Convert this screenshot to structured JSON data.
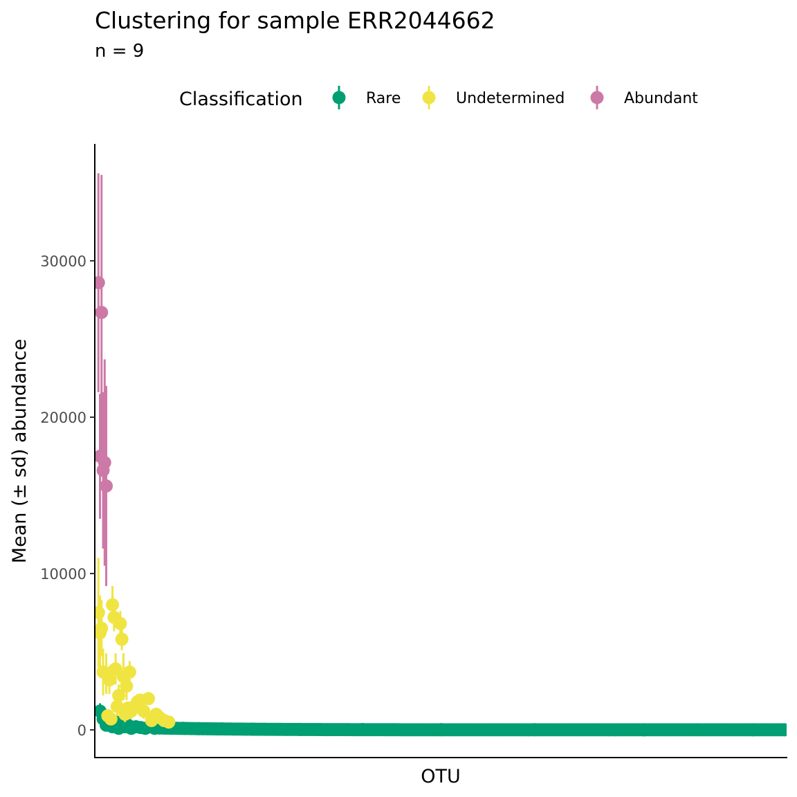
{
  "chart_data": {
    "type": "scatter",
    "title": "Clustering for sample ERR2044662",
    "subtitle": "n =  9",
    "xlabel": "OTU",
    "ylabel": "Mean (± sd) abundance",
    "ylim": [
      -1800,
      37500
    ],
    "yticks": [
      0,
      10000,
      20000,
      30000
    ],
    "ytick_labels": [
      "0",
      "10000",
      "20000",
      "30000"
    ],
    "x_ticks_shown": false,
    "grid": false,
    "legend": {
      "title": "Classification",
      "position": "top"
    },
    "series": [
      {
        "name": "Abundant",
        "color": "#CC79A7",
        "points": [
          {
            "x": 1,
            "y": 28600,
            "sd": 7000
          },
          {
            "x": 3,
            "y": 26700,
            "sd": 8800
          },
          {
            "x": 2,
            "y": 17500,
            "sd": 4000
          },
          {
            "x": 4,
            "y": 16600,
            "sd": 5000
          },
          {
            "x": 5,
            "y": 17100,
            "sd": 6600
          },
          {
            "x": 6,
            "y": 15600,
            "sd": 6400
          }
        ]
      },
      {
        "name": "Undetermined",
        "color": "#F0E442",
        "points": [
          {
            "x": 1,
            "y": 7500,
            "sd": 3500
          },
          {
            "x": 2,
            "y": 6200,
            "sd": 2400
          },
          {
            "x": 3,
            "y": 6500,
            "sd": 1800
          },
          {
            "x": 4,
            "y": 3700,
            "sd": 1500
          },
          {
            "x": 6,
            "y": 3600,
            "sd": 1300
          },
          {
            "x": 8,
            "y": 3200,
            "sd": 900
          },
          {
            "x": 10,
            "y": 8000,
            "sd": 1200
          },
          {
            "x": 11,
            "y": 7200,
            "sd": 900
          },
          {
            "x": 12,
            "y": 3900,
            "sd": 1000
          },
          {
            "x": 14,
            "y": 2200,
            "sd": 700
          },
          {
            "x": 15,
            "y": 6800,
            "sd": 800
          },
          {
            "x": 16,
            "y": 5800,
            "sd": 700
          },
          {
            "x": 17,
            "y": 3400,
            "sd": 1500
          },
          {
            "x": 19,
            "y": 2800,
            "sd": 900
          },
          {
            "x": 21,
            "y": 3700,
            "sd": 700
          },
          {
            "x": 13,
            "y": 1500,
            "sd": 600
          },
          {
            "x": 18,
            "y": 1000,
            "sd": 500
          },
          {
            "x": 20,
            "y": 1400,
            "sd": 400
          },
          {
            "x": 22,
            "y": 1200,
            "sd": 500
          },
          {
            "x": 24,
            "y": 1500,
            "sd": 400
          },
          {
            "x": 26,
            "y": 1800,
            "sd": 500
          },
          {
            "x": 28,
            "y": 1900,
            "sd": 400
          },
          {
            "x": 30,
            "y": 1200,
            "sd": 500
          },
          {
            "x": 33,
            "y": 2000,
            "sd": 400
          },
          {
            "x": 35,
            "y": 600,
            "sd": 300
          },
          {
            "x": 38,
            "y": 1000,
            "sd": 300
          },
          {
            "x": 40,
            "y": 800,
            "sd": 300
          },
          {
            "x": 43,
            "y": 600,
            "sd": 300
          },
          {
            "x": 46,
            "y": 500,
            "sd": 200
          },
          {
            "x": 7,
            "y": 900,
            "sd": 400
          },
          {
            "x": 9,
            "y": 700,
            "sd": 300
          }
        ]
      },
      {
        "name": "Rare",
        "color": "#009E73",
        "points": [
          {
            "x": 2,
            "y": 1200,
            "sd": 500
          },
          {
            "x": 4,
            "y": 700,
            "sd": 400
          },
          {
            "x": 6,
            "y": 300,
            "sd": 300
          },
          {
            "x": 8,
            "y": 600,
            "sd": 300
          },
          {
            "x": 10,
            "y": 200,
            "sd": 200
          },
          {
            "x": 12,
            "y": 500,
            "sd": 300
          },
          {
            "x": 14,
            "y": 100,
            "sd": 200
          },
          {
            "x": 16,
            "y": 400,
            "sd": 200
          },
          {
            "x": 18,
            "y": 200,
            "sd": 200
          },
          {
            "x": 20,
            "y": 300,
            "sd": 200
          },
          {
            "x": 22,
            "y": 100,
            "sd": 150
          },
          {
            "x": 25,
            "y": 200,
            "sd": 150
          },
          {
            "x": 28,
            "y": 150,
            "sd": 150
          },
          {
            "x": 31,
            "y": 100,
            "sd": 100
          },
          {
            "x": 34,
            "y": 200,
            "sd": 100
          },
          {
            "x": 37,
            "y": 100,
            "sd": 100
          },
          {
            "x": 40,
            "y": 150,
            "sd": 100
          },
          {
            "x": 44,
            "y": 150,
            "sd": 100
          },
          {
            "x": 48,
            "y": 120,
            "sd": 80
          },
          {
            "x": 55,
            "y": 100,
            "sd": 60
          },
          {
            "x": 65,
            "y": 80,
            "sd": 50
          },
          {
            "x": 80,
            "y": 60,
            "sd": 40
          },
          {
            "x": 100,
            "y": 40,
            "sd": 30
          },
          {
            "x": 130,
            "y": 30,
            "sd": 25
          },
          {
            "x": 170,
            "y": 20,
            "sd": 20
          },
          {
            "x": 220,
            "y": 15,
            "sd": 15
          },
          {
            "x": 280,
            "y": 10,
            "sd": 10
          },
          {
            "x": 350,
            "y": 8,
            "sd": 8
          },
          {
            "x": 420,
            "y": 5,
            "sd": 5
          }
        ],
        "continuous_band": {
          "x_start": 40,
          "x_end": 440,
          "y_start": 120,
          "y_end": 5
        }
      }
    ]
  }
}
